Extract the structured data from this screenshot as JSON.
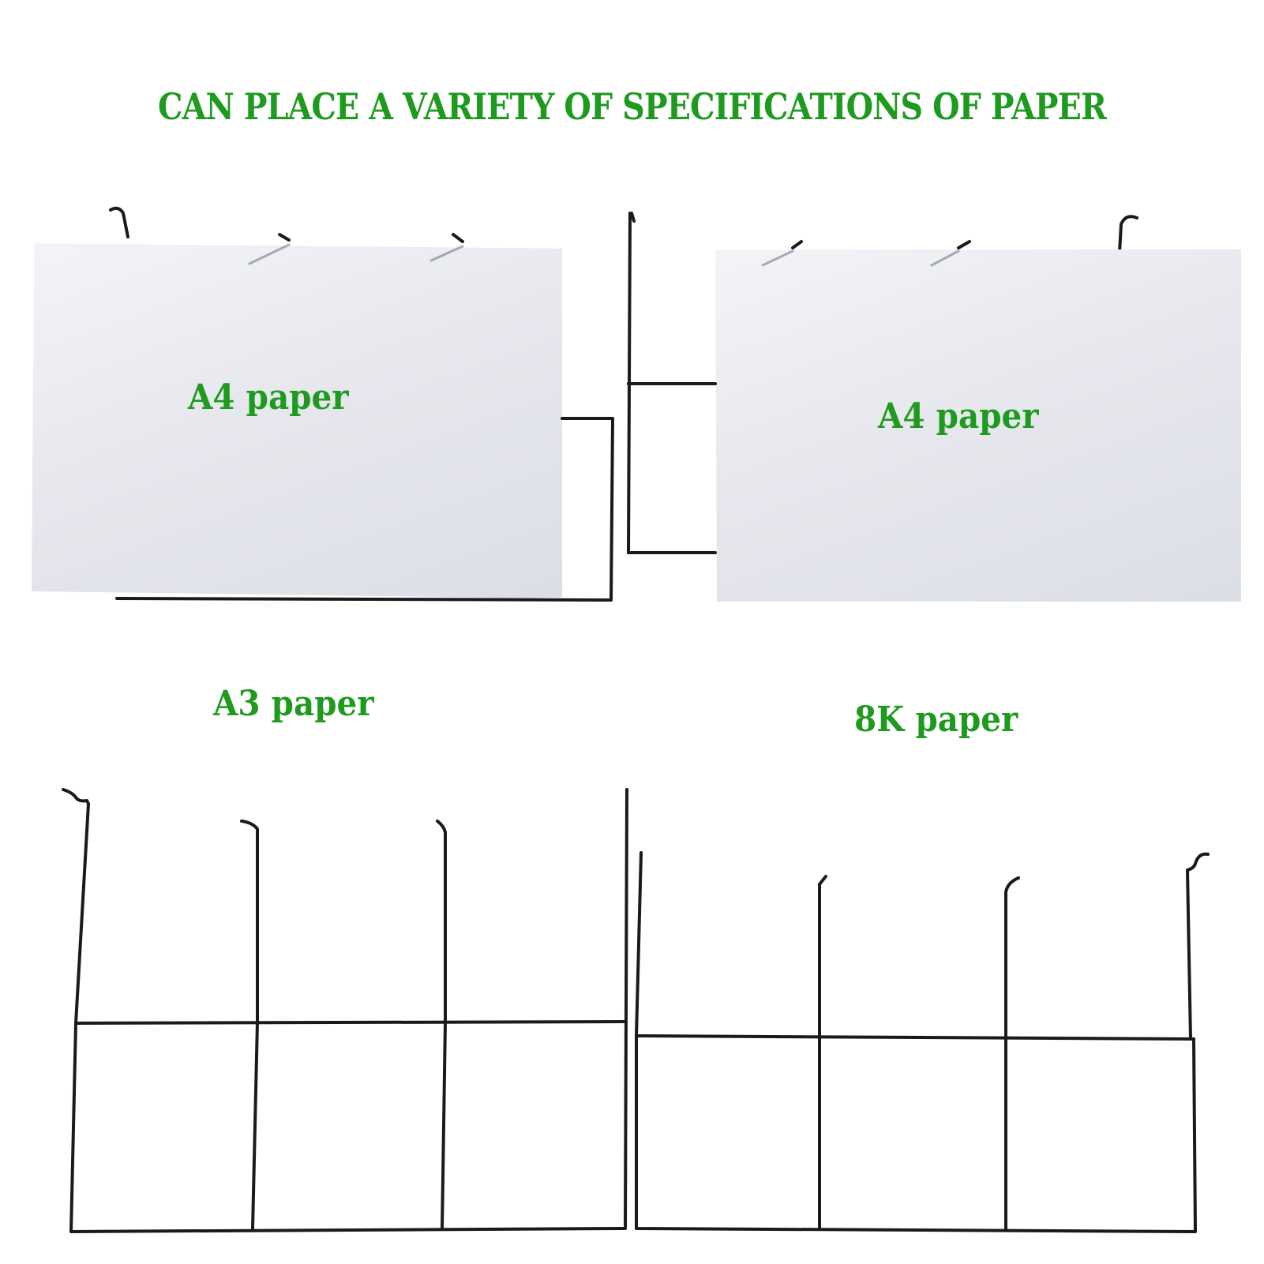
{
  "heading": "CAN PLACE A VARIETY OF SPECIFICATIONS OF PAPER",
  "labels": {
    "a4_left": "A4 paper",
    "a4_right": "A4 paper",
    "a3": "A3 paper",
    "k8": "8K paper"
  },
  "colors": {
    "text_green": "#1e9a1e",
    "wire": "#1a1a1a",
    "paper": "#e6e7ee",
    "background": "#ffffff"
  }
}
